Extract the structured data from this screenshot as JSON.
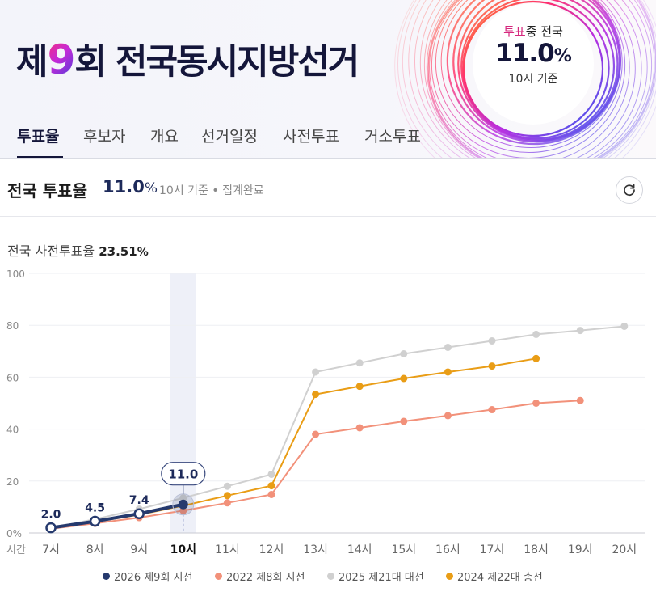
{
  "header": {
    "title_pre": "제",
    "title_num": "9",
    "title_post": "회 전국동시지방선거",
    "badge": {
      "label_highlight": "투표",
      "label_rest": "중 전국",
      "value": "11.0",
      "unit": "%",
      "sub": "10시 기준"
    }
  },
  "tabs": [
    {
      "label": "투표율",
      "active": true
    },
    {
      "label": "후보자",
      "active": false
    },
    {
      "label": "개요",
      "active": false
    },
    {
      "label": "선거일정",
      "active": false
    },
    {
      "label": "사전투표",
      "active": false
    },
    {
      "label": "거소투표",
      "active": false
    }
  ],
  "turnout": {
    "title": "전국 투표율",
    "value": "11.0",
    "unit": "%",
    "meta": "10시 기준 • 집계완료"
  },
  "early_vote": {
    "label": "전국 사전투표율",
    "value": "23.51",
    "unit": "%"
  },
  "chart_data": {
    "type": "line",
    "x": [
      "7시",
      "8시",
      "9시",
      "10시",
      "11시",
      "12시",
      "13시",
      "14시",
      "15시",
      "16시",
      "17시",
      "18시",
      "19시",
      "20시"
    ],
    "x_axis_label": "시간",
    "highlight_x": "10시",
    "y_ticks": [
      "0%",
      "20",
      "40",
      "60",
      "80",
      "100"
    ],
    "ylim": [
      0,
      100
    ],
    "series": [
      {
        "name": "2026 제9회 지선",
        "color": "#263a6e",
        "values": [
          2.0,
          4.5,
          7.4,
          11.0,
          null,
          null,
          null,
          null,
          null,
          null,
          null,
          null,
          null,
          null
        ],
        "labels": [
          "2.0",
          "4.5",
          "7.4",
          "11.0"
        ]
      },
      {
        "name": "2022 제8회 지선",
        "color": "#f2917a",
        "values": [
          1.6,
          3.7,
          5.9,
          8.6,
          11.6,
          14.8,
          38.0,
          40.5,
          43.0,
          45.2,
          47.5,
          50.0,
          51.0,
          null
        ]
      },
      {
        "name": "2025 제21대 대선",
        "color": "#d0d0d0",
        "values": [
          1.9,
          5.3,
          9.2,
          13.5,
          18.0,
          22.6,
          62.0,
          65.5,
          69.0,
          71.5,
          74.0,
          76.5,
          78.0,
          79.6
        ]
      },
      {
        "name": "2024 제22대 총선",
        "color": "#e99d16",
        "values": [
          1.8,
          4.3,
          7.0,
          10.5,
          14.4,
          18.2,
          53.4,
          56.5,
          59.5,
          62.0,
          64.3,
          67.2,
          null,
          null
        ]
      }
    ],
    "grid": true,
    "legend_position": "bottom"
  }
}
